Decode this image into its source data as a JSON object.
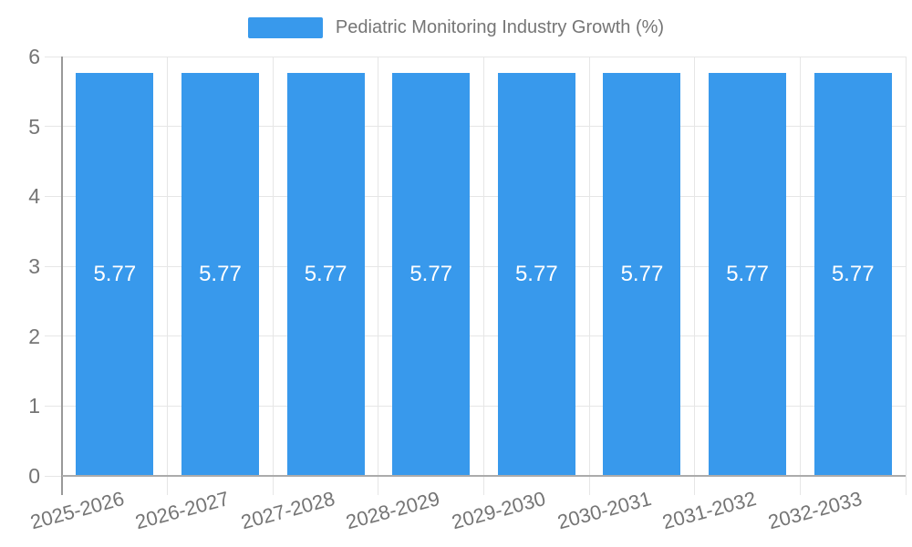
{
  "chart_data": {
    "type": "bar",
    "title": "Pediatric Monitoring Industry Growth (%)",
    "legend": [
      "Pediatric Monitoring Industry Growth (%)"
    ],
    "legend_position": "top",
    "categories": [
      "2025-2026",
      "2026-2027",
      "2027-2028",
      "2028-2029",
      "2029-2030",
      "2030-2031",
      "2031-2032",
      "2032-2033"
    ],
    "values": [
      5.77,
      5.77,
      5.77,
      5.77,
      5.77,
      5.77,
      5.77,
      5.77
    ],
    "bar_labels": [
      "5.77",
      "5.77",
      "5.77",
      "5.77",
      "5.77",
      "5.77",
      "5.77",
      "5.77"
    ],
    "xlabel": "",
    "ylabel": "",
    "ylim": [
      0,
      6
    ],
    "yticks": [
      0,
      1,
      2,
      3,
      4,
      5,
      6
    ],
    "grid": true
  },
  "colors": {
    "bar": "#3899EC",
    "bar_label_text": "#FFFFFF",
    "axis_text": "#757575",
    "gridline": "#E6E6E6",
    "y_axis_line": "#999999",
    "x_baseline": "#ABABAB",
    "background": "#FFFFFF"
  }
}
